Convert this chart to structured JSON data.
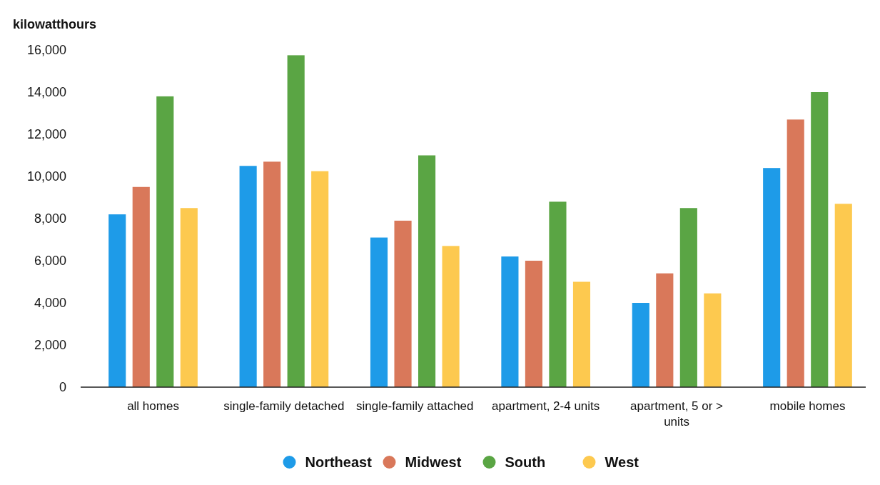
{
  "chart_data": {
    "type": "bar",
    "ylabel": "kilowatthours",
    "categories": [
      "all homes",
      "single-family detached",
      "single-family attached",
      "apartment, 2-4 units",
      "apartment, 5 or > units",
      "mobile homes"
    ],
    "series": [
      {
        "name": "Northeast",
        "color": "#1e9be8",
        "values": [
          8200,
          10500,
          7100,
          6200,
          4000,
          10400
        ]
      },
      {
        "name": "Midwest",
        "color": "#d9785a",
        "values": [
          9500,
          10700,
          7900,
          6000,
          5400,
          12700
        ]
      },
      {
        "name": "South",
        "color": "#5aa544",
        "values": [
          13800,
          15750,
          11000,
          8800,
          8500,
          14000
        ]
      },
      {
        "name": "West",
        "color": "#fdc94f",
        "values": [
          8500,
          10250,
          6700,
          5000,
          4450,
          8700
        ]
      }
    ],
    "ylim": [
      0,
      16000
    ],
    "yticks": [
      {
        "value": 0,
        "label": "0"
      },
      {
        "value": 2000,
        "label": "2,000"
      },
      {
        "value": 4000,
        "label": "4,000"
      },
      {
        "value": 6000,
        "label": "6,000"
      },
      {
        "value": 8000,
        "label": "8,000"
      },
      {
        "value": 10000,
        "label": "10,000"
      },
      {
        "value": 12000,
        "label": "12,000"
      },
      {
        "value": 14000,
        "label": "14,000"
      },
      {
        "value": 16000,
        "label": "16,000"
      }
    ],
    "grid": false,
    "legend": "bottom"
  }
}
